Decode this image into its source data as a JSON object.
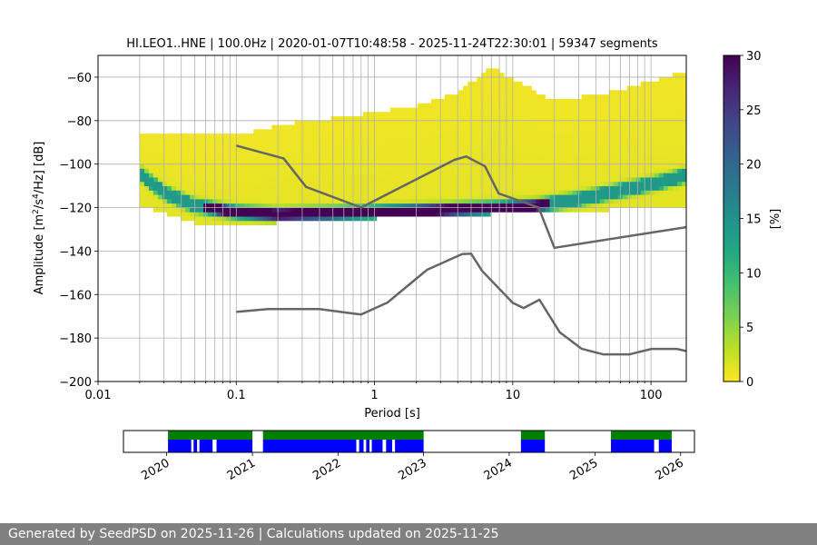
{
  "chart_data": [
    {
      "type": "heatmap",
      "title": "HI.LEO1..HNE | 100.0Hz | 2020-01-07T10:48:58 - 2025-11-24T22:30:01 | 59347 segments",
      "xlabel": "Period [s]",
      "ylabel_main": "Amplitude [m",
      "ylabel_sup1": "2",
      "ylabel_mid": "/s",
      "ylabel_sup2": "4",
      "ylabel_end": "/Hz] [dB]",
      "x_scale": "log",
      "xlim": [
        0.01,
        180
      ],
      "ylim": [
        -200,
        -50
      ],
      "x_ticks": [
        0.01,
        0.1,
        1,
        10,
        100
      ],
      "x_tick_labels": [
        "0.01",
        "0.1",
        "1",
        "10",
        "100"
      ],
      "y_ticks": [
        -200,
        -180,
        -160,
        -140,
        -120,
        -100,
        -80,
        -60
      ],
      "y_tick_labels": [
        "−200",
        "−180",
        "−160",
        "−140",
        "−120",
        "−100",
        "−80",
        "−60"
      ],
      "grid": true,
      "colormap": "viridis",
      "colorbar": {
        "label": "[%]",
        "range": [
          0,
          30
        ],
        "ticks": [
          0,
          5,
          10,
          15,
          20,
          25,
          30
        ],
        "tick_labels": [
          "0",
          "5",
          "10",
          "15",
          "20",
          "25",
          "30"
        ]
      },
      "psd_mode": [
        [
          0.02,
          -104
        ],
        [
          0.03,
          -113
        ],
        [
          0.05,
          -119
        ],
        [
          0.1,
          -122
        ],
        [
          0.2,
          -123
        ],
        [
          0.5,
          -122.5
        ],
        [
          1,
          -122
        ],
        [
          3,
          -121
        ],
        [
          8,
          -120
        ],
        [
          15,
          -119
        ],
        [
          30,
          -116
        ],
        [
          60,
          -112
        ],
        [
          120,
          -108
        ],
        [
          180,
          -105
        ]
      ],
      "psd_spread": [
        [
          0.02,
          -86,
          -118
        ],
        [
          0.05,
          -88,
          -126
        ],
        [
          0.1,
          -88,
          -128
        ],
        [
          0.2,
          -83,
          -126
        ],
        [
          0.5,
          -80,
          -125
        ],
        [
          1,
          -77,
          -124
        ],
        [
          2,
          -74,
          -124
        ],
        [
          4,
          -68,
          -123
        ],
        [
          7,
          -56,
          -122
        ],
        [
          10,
          -62,
          -122
        ],
        [
          20,
          -72,
          -121
        ],
        [
          50,
          -68,
          -120
        ],
        [
          100,
          -63,
          -119
        ],
        [
          180,
          -58,
          -118
        ]
      ],
      "series": [
        {
          "name": "",
          "color": "#666666",
          "points": [
            [
              0.1,
              -91.5
            ],
            [
              0.22,
              -97.4
            ],
            [
              0.32,
              -110.5
            ],
            [
              0.8,
              -120
            ],
            [
              3.8,
              -98
            ],
            [
              4.6,
              -96.5
            ],
            [
              6.3,
              -101
            ],
            [
              7.9,
              -113.5
            ],
            [
              15.4,
              -120
            ],
            [
              20,
              -138.5
            ],
            [
              180,
              -129
            ]
          ]
        },
        {
          "name": "",
          "color": "#666666",
          "points": [
            [
              0.1,
              -168
            ],
            [
              0.17,
              -166.7
            ],
            [
              0.4,
              -166.7
            ],
            [
              0.8,
              -169.2
            ],
            [
              1.24,
              -163.7
            ],
            [
              2.4,
              -148.6
            ],
            [
              4.3,
              -141.4
            ],
            [
              5,
              -141.2
            ],
            [
              6,
              -149.1
            ],
            [
              10,
              -163.8
            ],
            [
              12,
              -166.2
            ],
            [
              15.6,
              -162.4
            ],
            [
              21.9,
              -177.4
            ],
            [
              31.6,
              -185
            ],
            [
              45,
              -187.5
            ],
            [
              70,
              -187.5
            ],
            [
              101,
              -185
            ],
            [
              154,
              -185
            ],
            [
              180,
              -186
            ]
          ]
        }
      ]
    },
    {
      "type": "timeline",
      "x_ticks": [
        "2020-01-01",
        "2021-01-01",
        "2022-01-01",
        "2023-01-01",
        "2024-01-01",
        "2025-01-01",
        "2026-01-01"
      ],
      "x_tick_labels": [
        "2020",
        "2021",
        "2022",
        "2023",
        "2024",
        "2025",
        "2026"
      ],
      "xlim": [
        "2019-07-01",
        "2026-03-01"
      ],
      "colors": {
        "available": "#008000",
        "used": "#0000ff"
      },
      "available": [
        [
          "2020-01-07",
          "2021-01-01"
        ],
        [
          "2021-02-15",
          "2023-01-01"
        ],
        [
          "2024-02-20",
          "2024-06-01"
        ],
        [
          "2025-03-10",
          "2025-11-24"
        ]
      ],
      "used": [
        [
          "2020-01-07",
          "2020-04-15"
        ],
        [
          "2020-04-25",
          "2020-05-10"
        ],
        [
          "2020-05-20",
          "2020-07-15"
        ],
        [
          "2020-08-01",
          "2021-01-01"
        ],
        [
          "2021-02-15",
          "2022-03-20"
        ],
        [
          "2022-04-01",
          "2022-04-20"
        ],
        [
          "2022-05-01",
          "2022-05-15"
        ],
        [
          "2022-05-25",
          "2022-07-10"
        ],
        [
          "2022-07-25",
          "2022-08-20"
        ],
        [
          "2022-09-01",
          "2023-01-01"
        ],
        [
          "2024-02-20",
          "2024-06-01"
        ],
        [
          "2025-03-10",
          "2025-09-10"
        ],
        [
          "2025-09-30",
          "2025-11-24"
        ]
      ]
    }
  ],
  "footer": {
    "text": "Generated by SeedPSD on 2025-11-26 | Calculations updated on 2025-11-25"
  }
}
